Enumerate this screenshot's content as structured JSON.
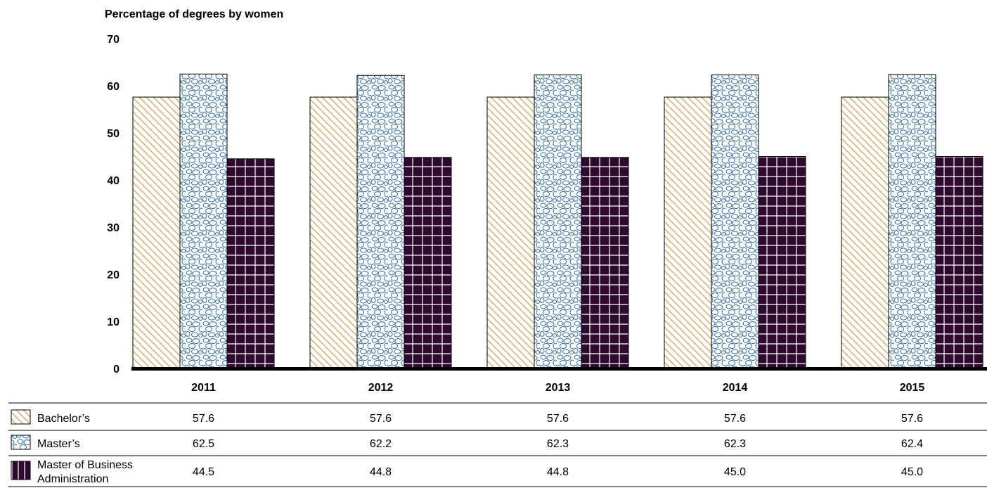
{
  "chart_data": {
    "type": "bar",
    "title": "",
    "ylabel": "Percentage of degrees by women",
    "xlabel": "",
    "ylim": [
      0,
      70
    ],
    "yticks": [
      0,
      10,
      20,
      30,
      40,
      50,
      60,
      70
    ],
    "categories": [
      "2011",
      "2012",
      "2013",
      "2014",
      "2015"
    ],
    "series": [
      {
        "name": "Bachelor’s",
        "values": [
          57.6,
          57.6,
          57.6,
          57.6,
          57.6
        ],
        "pattern": "diagonal-hatch",
        "color": "#c8a04a"
      },
      {
        "name": "Master’s",
        "values": [
          62.5,
          62.2,
          62.3,
          62.3,
          62.4
        ],
        "pattern": "pebbles",
        "color": "#2e6da4"
      },
      {
        "name": "Master of Business Administration",
        "values": [
          44.5,
          44.8,
          44.8,
          45.0,
          45.0
        ],
        "pattern": "grid",
        "color": "#2d0a2e"
      }
    ],
    "table": {
      "rows": [
        {
          "label": "Bachelor’s",
          "cells": [
            "57.6",
            "57.6",
            "57.6",
            "57.6",
            "57.6"
          ]
        },
        {
          "label": "Master’s",
          "cells": [
            "62.5",
            "62.2",
            "62.3",
            "62.3",
            "62.4"
          ]
        },
        {
          "label_lines": [
            "Master of Business",
            "Administration"
          ],
          "cells": [
            "44.5",
            "44.8",
            "44.8",
            "45.0",
            "45.0"
          ]
        }
      ]
    },
    "grid": false,
    "legend": "table-below"
  }
}
